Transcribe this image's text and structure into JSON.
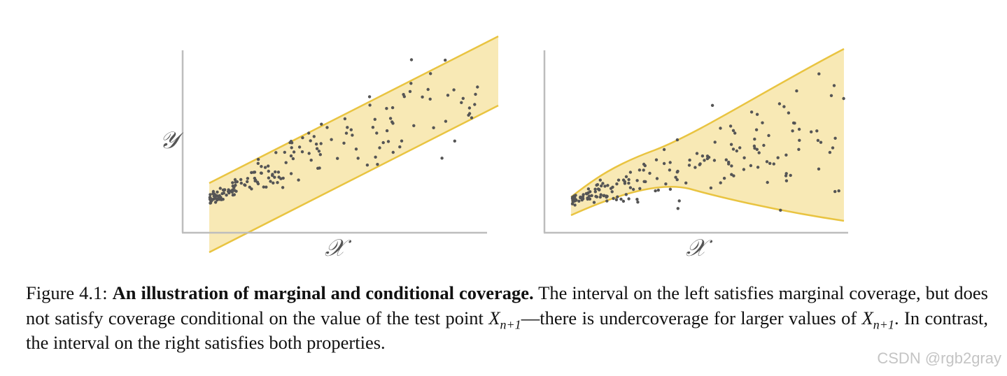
{
  "chart_data": [
    {
      "type": "scatter",
      "xlabel": "𝒳",
      "ylabel": "𝒴",
      "band": "constant-width linear prediction interval",
      "band_color": "#F8E9B5",
      "band_edge_color": "#E9C441",
      "point_color": "#555555",
      "axis_color": "#BDBDBD",
      "points_description": "dense cluster at low x, spread increasing with x; many high-x points fall outside the band"
    },
    {
      "type": "scatter",
      "xlabel": "𝒳",
      "ylabel": "",
      "band": "adaptive prediction interval widening with x",
      "band_color": "#F8E9B5",
      "band_edge_color": "#E9C441",
      "point_color": "#555555",
      "axis_color": "#BDBDBD",
      "points_description": "dense cluster at low x, spread increasing with x; points covered by the band"
    }
  ],
  "caption": {
    "prefix": "Figure 4.1: ",
    "title": "An illustration of marginal and conditional coverage.",
    "text1": " The interval on the left satisfies marginal coverage, but does not satisfy coverage conditional on the value of the test point ",
    "math_var": "X",
    "math_sub": "n+1",
    "text2": "—there is undercoverage for larger values of ",
    "text3": ". In contrast, the interval on the right satisfies both properties."
  },
  "watermark": "CSDN @rgb2gray"
}
